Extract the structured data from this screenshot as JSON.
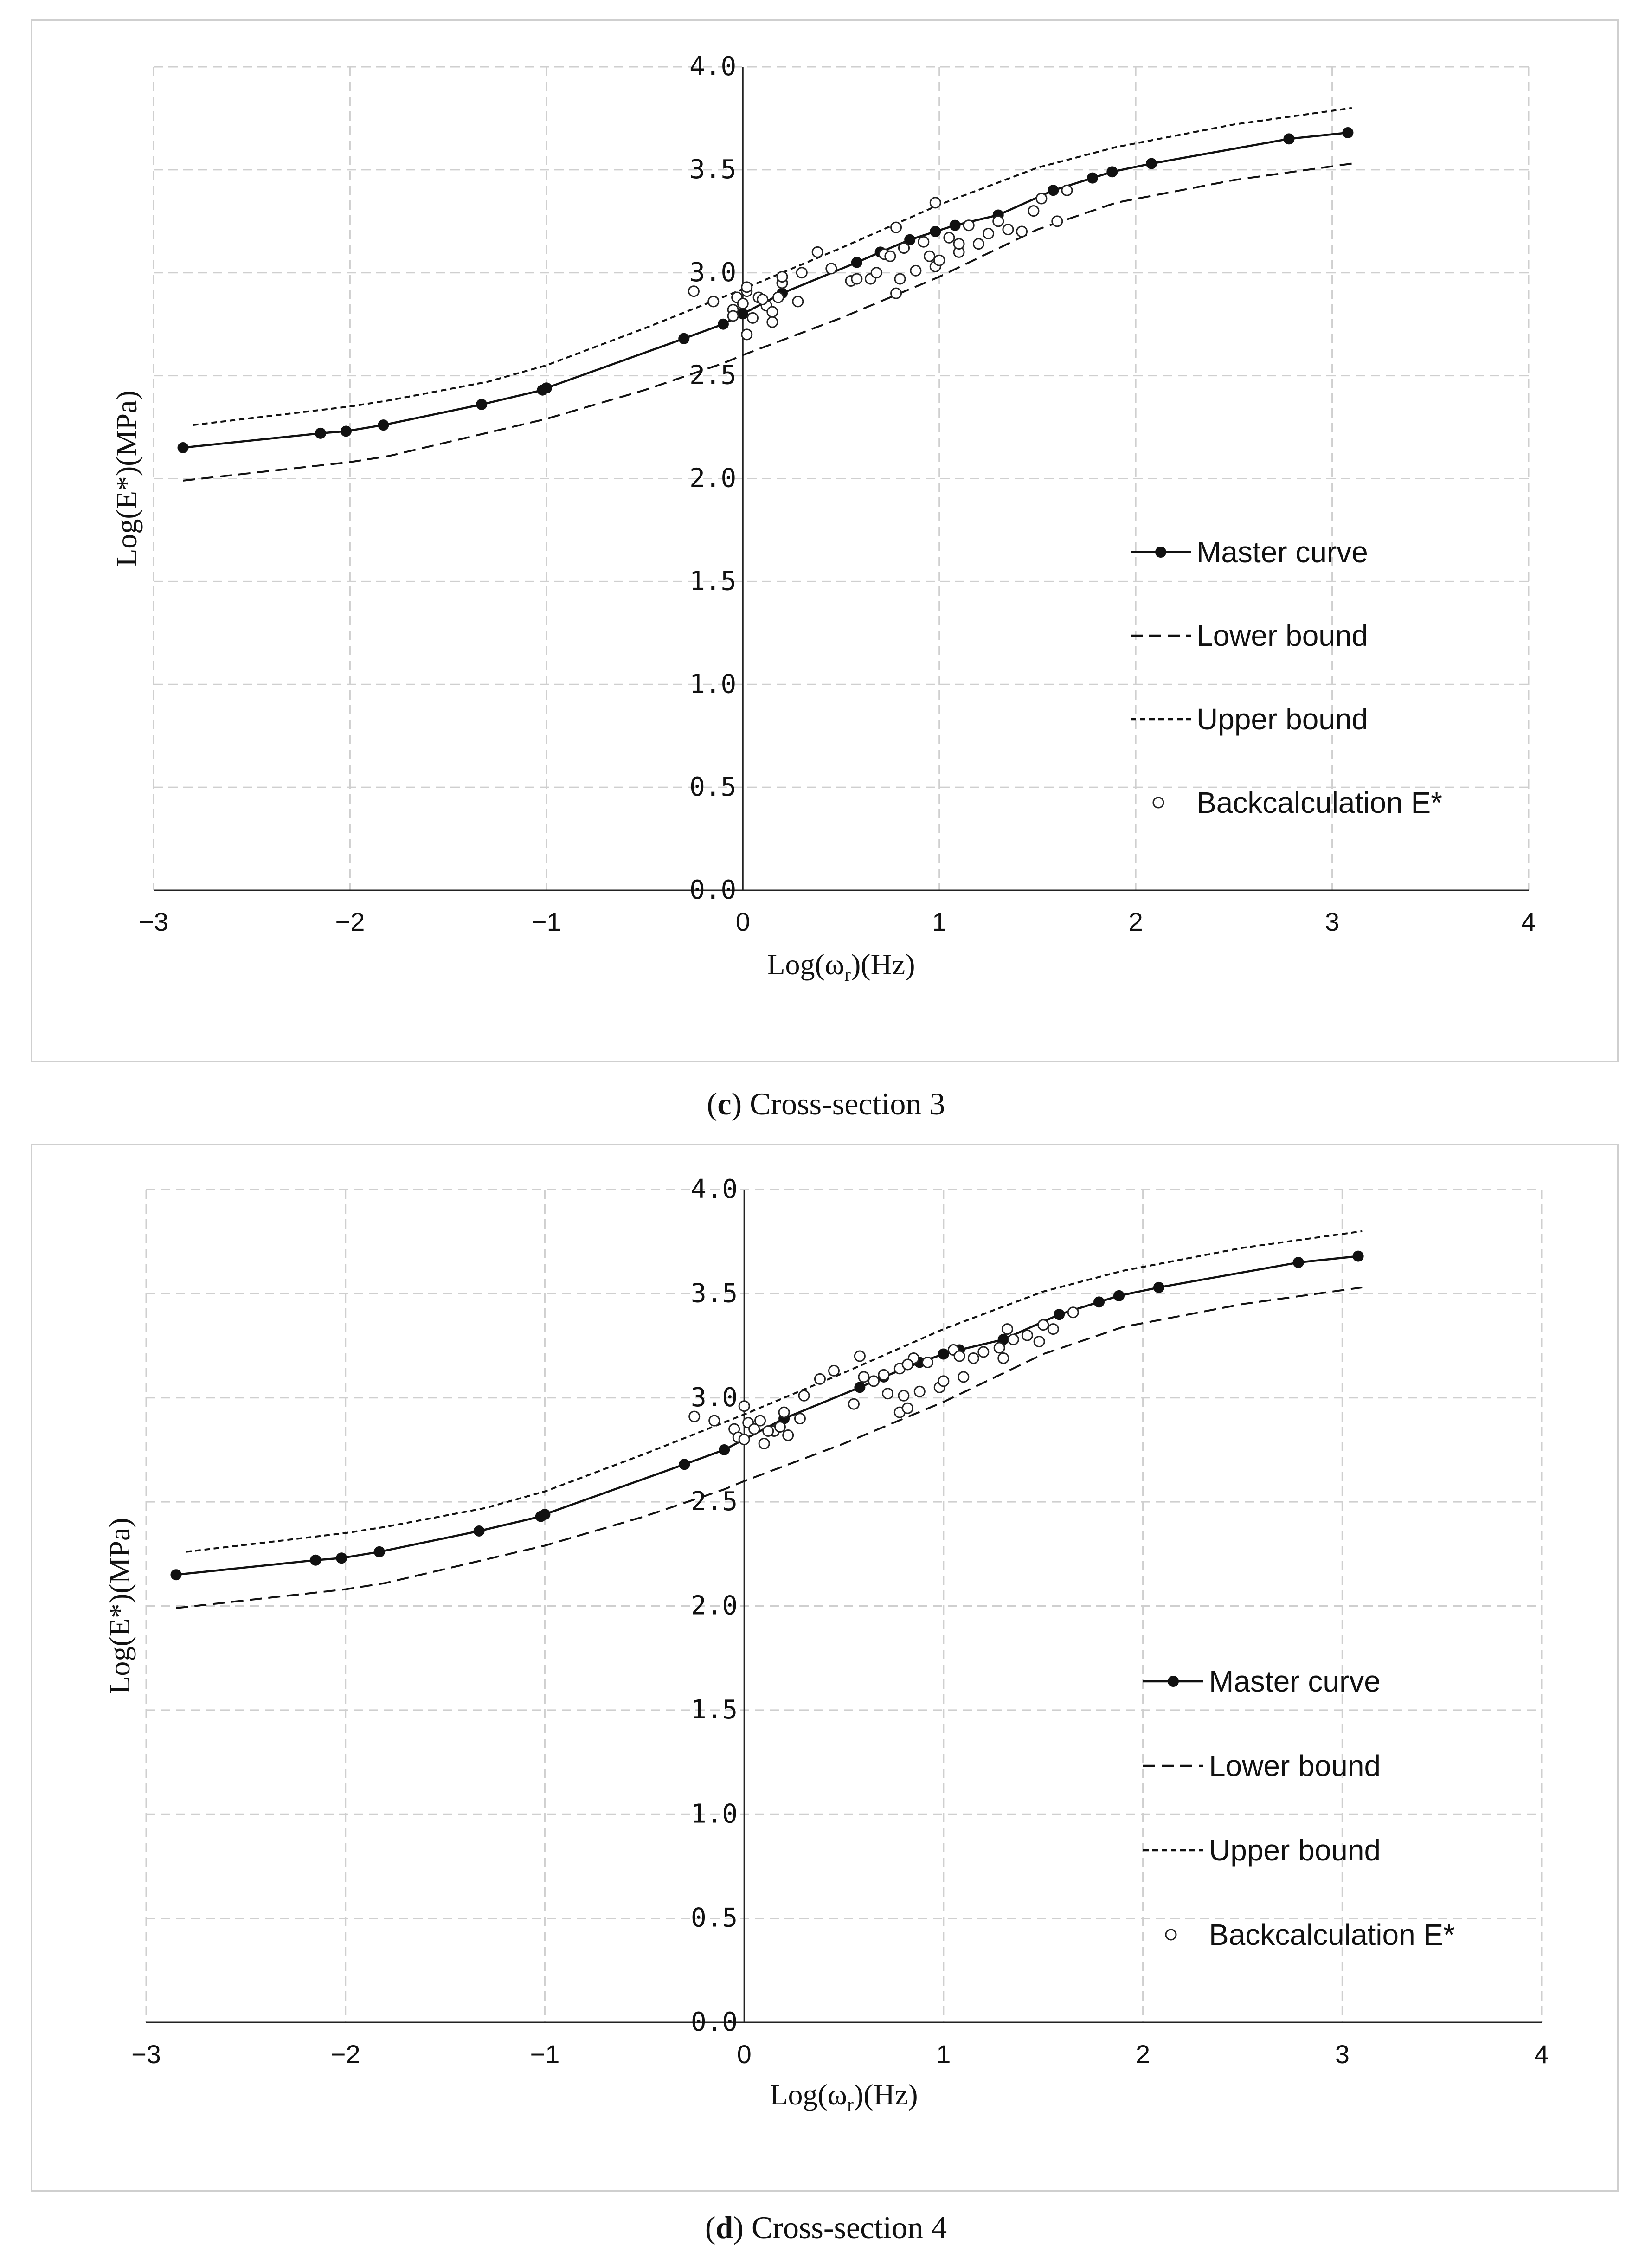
{
  "chart_data": [
    {
      "id": "c",
      "type": "line",
      "caption_letter": "c",
      "caption_text": "Cross-section 3",
      "xlabel_main": "Log(ω",
      "xlabel_sub": "r",
      "xlabel_tail": ")(Hz)",
      "ylabel": "Log(E*)(MPa)",
      "xlim": [
        -3,
        4
      ],
      "ylim": [
        0,
        4
      ],
      "x_ticks": [
        "−3",
        "−2",
        "−1",
        "0",
        "1",
        "2",
        "3",
        "4"
      ],
      "y_ticks": [
        "0.0",
        "0.5",
        "1.0",
        "1.5",
        "2.0",
        "2.5",
        "3.0",
        "3.5",
        "4.0"
      ],
      "grid": true,
      "legend_position": "right-center",
      "series": [
        {
          "name": "Master curve",
          "style": "solid-marker",
          "x": [
            -2.85,
            -2.15,
            -2.02,
            -1.83,
            -1.33,
            -1.02,
            -1.0,
            -0.3,
            -0.1,
            0.0,
            0.2,
            0.58,
            0.7,
            0.85,
            0.98,
            1.08,
            1.3,
            1.58,
            1.78,
            1.88,
            2.08,
            2.78,
            3.08
          ],
          "y": [
            2.15,
            2.22,
            2.23,
            2.26,
            2.36,
            2.43,
            2.44,
            2.68,
            2.75,
            2.8,
            2.9,
            3.05,
            3.1,
            3.16,
            3.2,
            3.23,
            3.28,
            3.4,
            3.46,
            3.49,
            3.53,
            3.65,
            3.68
          ]
        },
        {
          "name": "Lower bound",
          "style": "dashed",
          "x": [
            -2.85,
            -2.0,
            -1.8,
            -1.0,
            -0.5,
            -0.1,
            0.0,
            0.5,
            1.0,
            1.5,
            1.9,
            2.5,
            3.1
          ],
          "y": [
            1.99,
            2.08,
            2.11,
            2.29,
            2.43,
            2.56,
            2.6,
            2.78,
            2.98,
            3.21,
            3.34,
            3.45,
            3.53
          ]
        },
        {
          "name": "Upper bound",
          "style": "short-dash",
          "x": [
            -2.8,
            -2.0,
            -1.8,
            -1.3,
            -1.0,
            -0.5,
            0.0,
            0.5,
            1.0,
            1.5,
            1.9,
            2.5,
            3.1
          ],
          "y": [
            2.26,
            2.35,
            2.38,
            2.47,
            2.55,
            2.73,
            2.92,
            3.12,
            3.33,
            3.51,
            3.61,
            3.72,
            3.8
          ]
        },
        {
          "name": "Backcalculation E*",
          "style": "open-circle",
          "x": [
            -0.25,
            -0.15,
            -0.05,
            -0.03,
            0.0,
            0.02,
            0.05,
            0.08,
            0.12,
            0.15,
            0.18,
            0.2,
            0.02,
            0.1,
            0.28,
            0.3,
            0.38,
            0.45,
            0.55,
            0.65,
            0.68,
            0.72,
            0.78,
            0.8,
            0.82,
            0.88,
            0.92,
            0.95,
            0.98,
            1.0,
            1.05,
            1.1,
            1.15,
            1.2,
            1.25,
            1.3,
            1.35,
            1.42,
            1.48,
            1.52,
            1.6,
            1.65,
            0.78,
            0.98,
            1.1,
            0.58,
            -0.05,
            0.02,
            0.15,
            0.2,
            0.75,
            0.82
          ],
          "y": [
            2.91,
            2.86,
            2.82,
            2.88,
            2.85,
            2.7,
            2.78,
            2.88,
            2.84,
            2.81,
            2.88,
            2.95,
            2.91,
            2.87,
            2.86,
            3.0,
            3.1,
            3.02,
            2.96,
            2.97,
            3.0,
            3.09,
            2.9,
            2.97,
            3.12,
            3.01,
            3.15,
            3.08,
            3.03,
            3.06,
            3.17,
            3.1,
            3.23,
            3.14,
            3.19,
            3.25,
            3.21,
            3.2,
            3.3,
            3.36,
            3.25,
            3.4,
            3.22,
            3.34,
            3.14,
            2.97,
            2.79,
            2.93,
            2.76,
            2.98,
            3.08,
            3.12
          ]
        }
      ]
    },
    {
      "id": "d",
      "type": "line",
      "caption_letter": "d",
      "caption_text": "Cross-section 4",
      "xlabel_main": "Log(ω",
      "xlabel_sub": "r",
      "xlabel_tail": ")(Hz)",
      "ylabel": "Log(E*)(MPa)",
      "xlim": [
        -3,
        4
      ],
      "ylim": [
        0,
        4
      ],
      "x_ticks": [
        "−3",
        "−2",
        "−1",
        "0",
        "1",
        "2",
        "3",
        "4"
      ],
      "y_ticks": [
        "0.0",
        "0.5",
        "1.0",
        "1.5",
        "2.0",
        "2.5",
        "3.0",
        "3.5",
        "4.0"
      ],
      "grid": true,
      "legend_position": "right-center",
      "series": [
        {
          "name": "Master curve",
          "style": "solid-marker",
          "x": [
            -2.85,
            -2.15,
            -2.02,
            -1.83,
            -1.33,
            -1.02,
            -1.0,
            -0.3,
            -0.1,
            0.0,
            0.2,
            0.58,
            0.7,
            0.88,
            1.0,
            1.08,
            1.3,
            1.58,
            1.78,
            1.88,
            2.08,
            2.78,
            3.08
          ],
          "y": [
            2.15,
            2.22,
            2.23,
            2.26,
            2.36,
            2.43,
            2.44,
            2.68,
            2.75,
            2.8,
            2.9,
            3.05,
            3.1,
            3.17,
            3.21,
            3.23,
            3.28,
            3.4,
            3.46,
            3.49,
            3.53,
            3.65,
            3.68
          ]
        },
        {
          "name": "Lower bound",
          "style": "dashed",
          "x": [
            -2.85,
            -2.0,
            -1.8,
            -1.0,
            -0.5,
            -0.1,
            0.0,
            0.5,
            1.0,
            1.5,
            1.9,
            2.5,
            3.1
          ],
          "y": [
            1.99,
            2.08,
            2.11,
            2.29,
            2.43,
            2.56,
            2.6,
            2.78,
            2.98,
            3.21,
            3.34,
            3.45,
            3.53
          ]
        },
        {
          "name": "Upper bound",
          "style": "short-dash",
          "x": [
            -2.8,
            -2.0,
            -1.8,
            -1.3,
            -1.0,
            -0.5,
            0.0,
            0.5,
            1.0,
            1.5,
            1.9,
            2.5,
            3.1
          ],
          "y": [
            2.26,
            2.35,
            2.38,
            2.47,
            2.55,
            2.73,
            2.92,
            3.12,
            3.33,
            3.51,
            3.61,
            3.72,
            3.8
          ]
        },
        {
          "name": "Backcalculation E*",
          "style": "open-circle",
          "x": [
            -0.25,
            -0.15,
            -0.05,
            -0.03,
            0.0,
            0.02,
            0.05,
            0.08,
            0.1,
            0.15,
            0.18,
            0.2,
            0.28,
            0.3,
            0.38,
            0.45,
            0.55,
            0.58,
            0.65,
            0.7,
            0.72,
            0.78,
            0.8,
            0.82,
            0.85,
            0.88,
            0.92,
            0.98,
            1.0,
            1.05,
            1.1,
            1.15,
            1.2,
            1.3,
            1.32,
            1.35,
            1.42,
            1.48,
            1.5,
            1.55,
            1.65,
            0.0,
            0.12,
            0.22,
            0.6,
            0.78,
            0.82,
            1.08,
            1.28
          ],
          "y": [
            2.91,
            2.89,
            2.85,
            2.81,
            2.96,
            2.88,
            2.85,
            2.89,
            2.78,
            2.84,
            2.86,
            2.93,
            2.9,
            3.01,
            3.09,
            3.13,
            2.97,
            3.2,
            3.08,
            3.11,
            3.02,
            2.93,
            3.01,
            2.95,
            3.19,
            3.03,
            3.17,
            3.05,
            3.08,
            3.23,
            3.1,
            3.19,
            3.22,
            3.19,
            3.33,
            3.28,
            3.3,
            3.27,
            3.35,
            3.33,
            3.41,
            2.8,
            2.84,
            2.82,
            3.1,
            3.14,
            3.16,
            3.2,
            3.24
          ]
        }
      ]
    }
  ]
}
